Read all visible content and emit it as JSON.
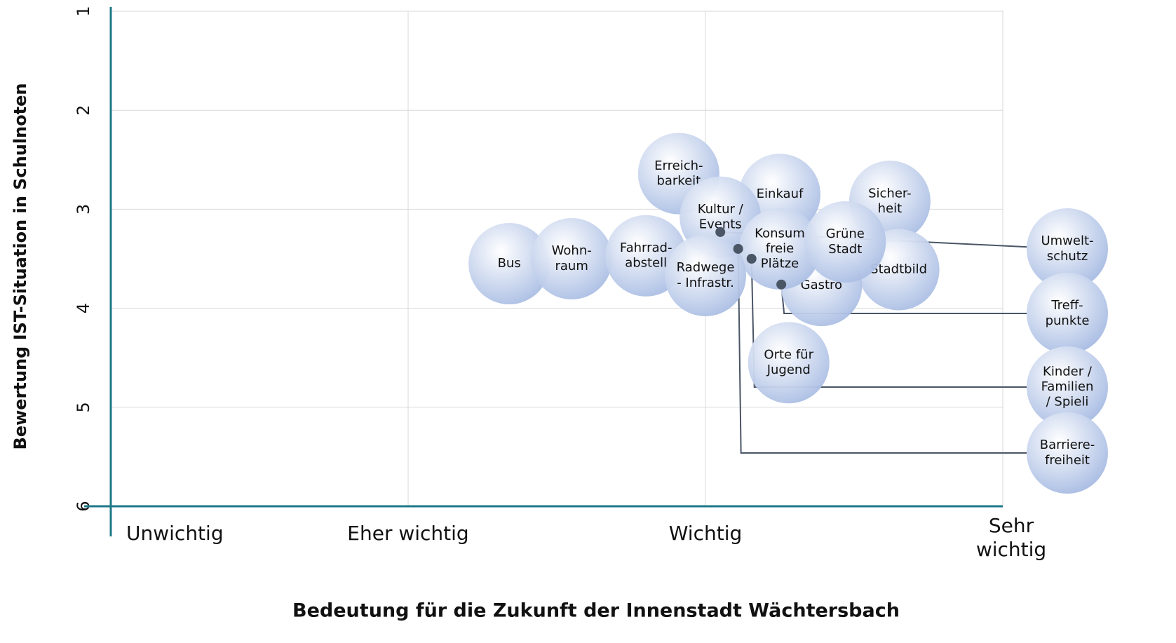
{
  "chart_data": {
    "type": "bubble",
    "x_label": "Bedeutung für die Zukunft der Innenstadt Wächtersbach",
    "y_label": "Bewertung IST-Situation in Schulnoten",
    "xlim": [
      1,
      4
    ],
    "ylim": [
      6,
      1
    ],
    "xticks": [
      {
        "value": 1,
        "label": "Unwichtig"
      },
      {
        "value": 2,
        "label": "Eher wichtig"
      },
      {
        "value": 3,
        "label": "Wichtig"
      },
      {
        "value": 4,
        "label": "Sehr\nwichtig"
      }
    ],
    "yticks": [
      1,
      2,
      3,
      4,
      5,
      6
    ],
    "grid": true,
    "axis_color": "#1e7889",
    "color": "#a8bce3",
    "points": {
      "labels": [
        "Bus",
        "Wohn-\nraum",
        "Fahrrad-\nabstell",
        "Erreich-\nbarkeit",
        "Einkauf",
        "Kultur /\nEvents",
        "Sicher-\nheit",
        "Stadtbild",
        "Gastro",
        "Konsum\nfreie\nPlätze",
        "Grüne\nStadt",
        "Radwege\n- Infrastr.",
        "Orte für\nJugend"
      ],
      "x": [
        2.34,
        2.55,
        2.8,
        2.91,
        3.25,
        3.05,
        3.62,
        3.65,
        3.39,
        3.25,
        3.47,
        3.0,
        3.28
      ],
      "y": [
        3.55,
        3.5,
        3.47,
        2.64,
        2.85,
        3.08,
        2.92,
        3.61,
        3.77,
        3.4,
        3.33,
        3.67,
        4.55
      ]
    },
    "callouts": {
      "labels": [
        "Umwelt-\nschutz",
        "Treff-\npunkte",
        "Kinder /\nFamilien\n/ Spieli",
        "Barriere-\nfreiheit"
      ],
      "x": [
        3.05,
        3.255,
        3.155,
        3.11
      ],
      "y": [
        3.23,
        3.76,
        3.5,
        3.4
      ]
    }
  }
}
